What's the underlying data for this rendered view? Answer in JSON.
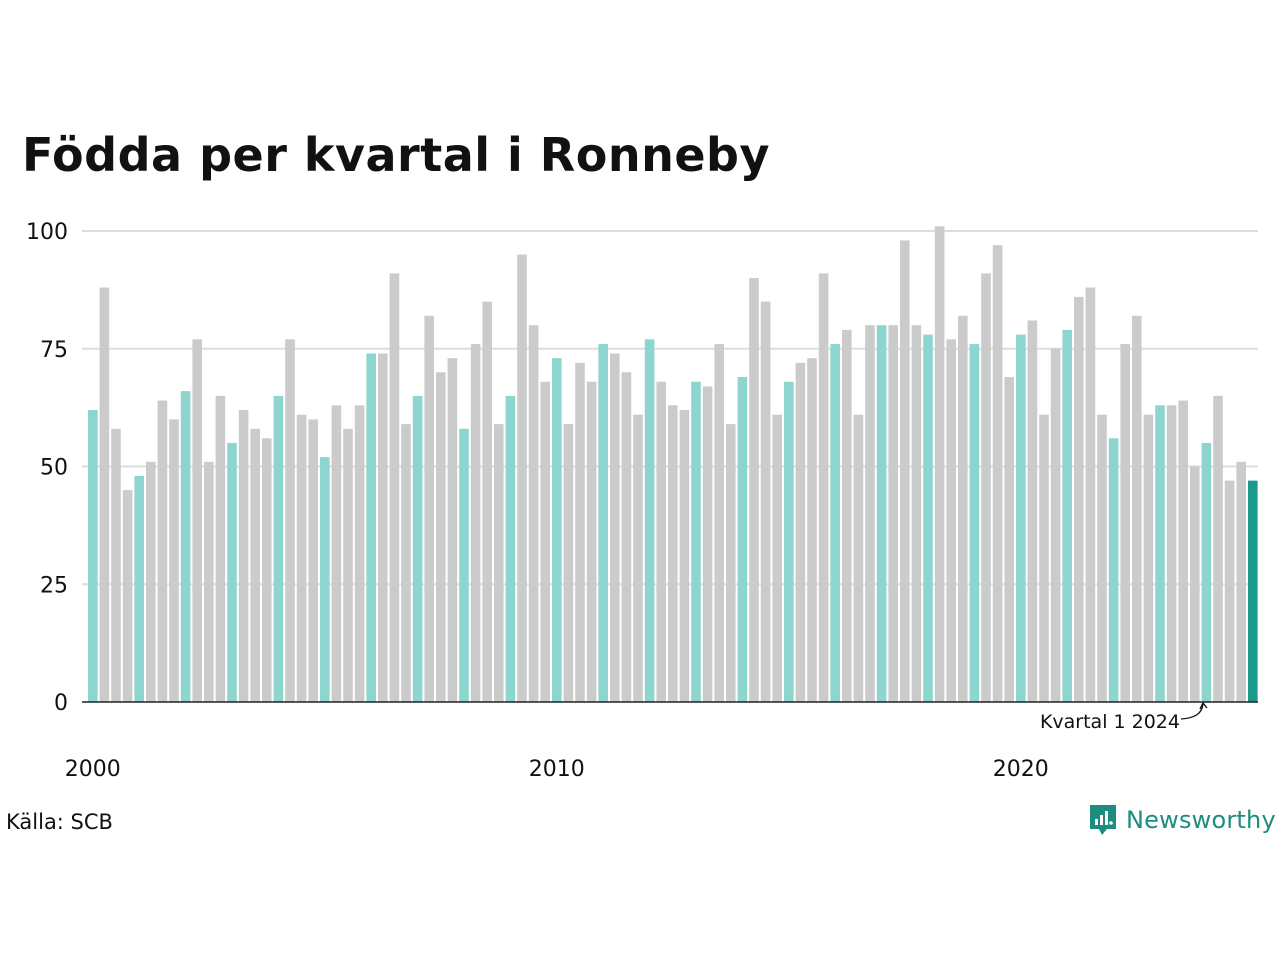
{
  "title": "Födda per kvartal i Ronneby",
  "source": "Källa: SCB",
  "brand": "Newsworthy",
  "colors": {
    "q1": "#8dd6cf",
    "other": "#cbcbcb",
    "latest": "#1a9a8a",
    "grid": "#dddddd",
    "axis": "#222222",
    "brand": "#1e8c7e"
  },
  "chart_data": {
    "type": "bar",
    "ylim": [
      0,
      100
    ],
    "yticks": [
      0,
      25,
      50,
      75,
      100
    ],
    "xtick_labels": [
      "2000",
      "2010",
      "2020"
    ],
    "annotation": "Kvartal 1 2024",
    "grid": true,
    "highlight": "first quarter of each year",
    "series": [
      {
        "values": [
          62,
          88,
          58,
          45,
          48,
          51,
          64,
          60,
          66,
          77,
          51,
          65,
          55,
          62,
          58,
          56,
          65,
          77,
          61,
          60,
          52,
          63,
          58,
          63,
          74,
          74,
          91,
          59,
          65,
          82,
          70,
          73,
          58,
          76,
          85,
          59,
          65,
          95,
          80,
          68,
          73,
          59,
          72,
          68,
          76,
          74,
          70,
          61,
          77,
          68,
          63,
          62,
          68,
          67,
          76,
          59,
          69,
          90,
          85,
          61,
          68,
          72,
          73,
          91,
          76,
          79,
          61,
          80,
          80,
          80,
          98,
          80,
          78,
          101,
          77,
          82,
          76,
          91,
          97,
          69,
          78,
          81,
          61,
          75,
          79,
          86,
          88,
          61,
          56,
          76,
          82,
          61,
          63,
          63,
          64,
          50,
          55,
          65,
          47,
          51,
          47
        ]
      }
    ]
  }
}
